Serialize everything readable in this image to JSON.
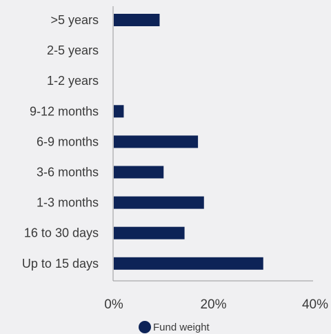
{
  "chart_data": {
    "type": "bar",
    "orientation": "horizontal",
    "categories": [
      ">5 years",
      "2-5 years",
      "1-2 years",
      "9-12 months",
      "6-9 months",
      "3-6 months",
      "1-3 months",
      "16 to 30 days",
      "Up to 15 days"
    ],
    "series": [
      {
        "name": "Fund weight",
        "values": [
          9.2,
          0,
          0,
          2.0,
          16.9,
          10.0,
          18.1,
          14.2,
          30.0
        ]
      }
    ],
    "xlim": [
      0,
      40
    ],
    "x_ticks": [
      "0%",
      "20%",
      "40%"
    ],
    "grid": false,
    "legend_position": "bottom",
    "colors": {
      "bar": "#0d2357",
      "axis": "#999999"
    }
  }
}
